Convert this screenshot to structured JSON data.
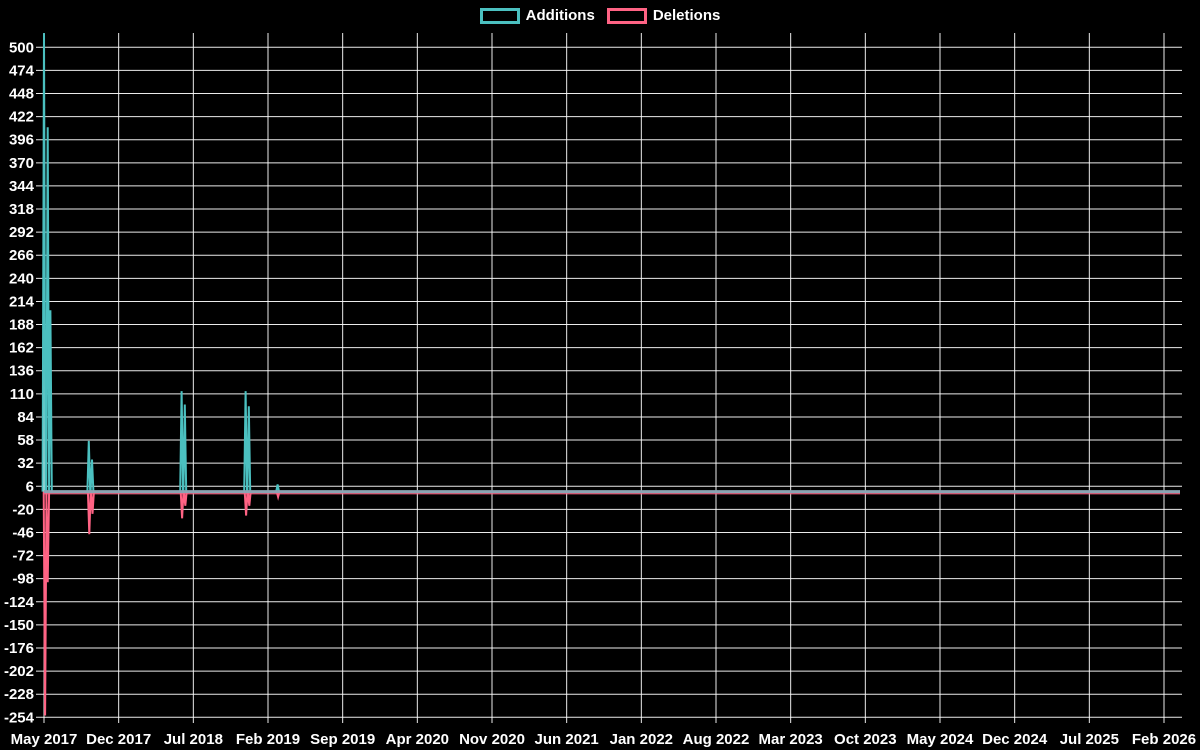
{
  "legend": {
    "additions_label": "Additions",
    "deletions_label": "Deletions"
  },
  "chart_data": {
    "type": "line",
    "title": "",
    "background": "#000000",
    "grid": true,
    "grid_color": "#ffffff",
    "zero_line_color": "#8ba4b3",
    "legend_position": "top",
    "x_ticks": [
      "May 2017",
      "Dec 2017",
      "Jul 2018",
      "Feb 2019",
      "Sep 2019",
      "Apr 2020",
      "Nov 2020",
      "Jun 2021",
      "Jan 2022",
      "Aug 2022",
      "Mar 2023",
      "Oct 2023",
      "May 2024",
      "Dec 2024",
      "Jul 2025",
      "Feb 2026"
    ],
    "x_tick_interval_months": 7,
    "x_range_months": [
      0,
      106.5
    ],
    "y_ticks": [
      500,
      474,
      448,
      422,
      396,
      370,
      344,
      318,
      292,
      266,
      240,
      214,
      188,
      162,
      136,
      110,
      84,
      58,
      32,
      6,
      -20,
      -46,
      -72,
      -98,
      -124,
      -150,
      -176,
      -202,
      -228,
      -254
    ],
    "ylim": [
      -254,
      500
    ],
    "y_tick_step": 26,
    "baseline_value": 0,
    "series": [
      {
        "name": "Additions",
        "color": "#4bc0c0",
        "baseline": 0,
        "spikes": [
          {
            "month": 0.0,
            "value": 516
          },
          {
            "month": 0.35,
            "value": 410
          },
          {
            "month": 0.6,
            "value": 204
          },
          {
            "month": 4.2,
            "value": 57
          },
          {
            "month": 4.5,
            "value": 36
          },
          {
            "month": 12.9,
            "value": 113
          },
          {
            "month": 13.2,
            "value": 98
          },
          {
            "month": 18.9,
            "value": 113
          },
          {
            "month": 19.2,
            "value": 96
          },
          {
            "month": 21.9,
            "value": 8
          }
        ]
      },
      {
        "name": "Deletions",
        "color": "#ff6384",
        "baseline": 0,
        "spikes": [
          {
            "month": 0.1,
            "value": -252
          },
          {
            "month": 0.35,
            "value": -102
          },
          {
            "month": 4.25,
            "value": -48
          },
          {
            "month": 4.55,
            "value": -25
          },
          {
            "month": 12.95,
            "value": -30
          },
          {
            "month": 13.25,
            "value": -16
          },
          {
            "month": 18.95,
            "value": -27
          },
          {
            "month": 19.25,
            "value": -16
          },
          {
            "month": 21.95,
            "value": -6
          }
        ]
      }
    ]
  }
}
